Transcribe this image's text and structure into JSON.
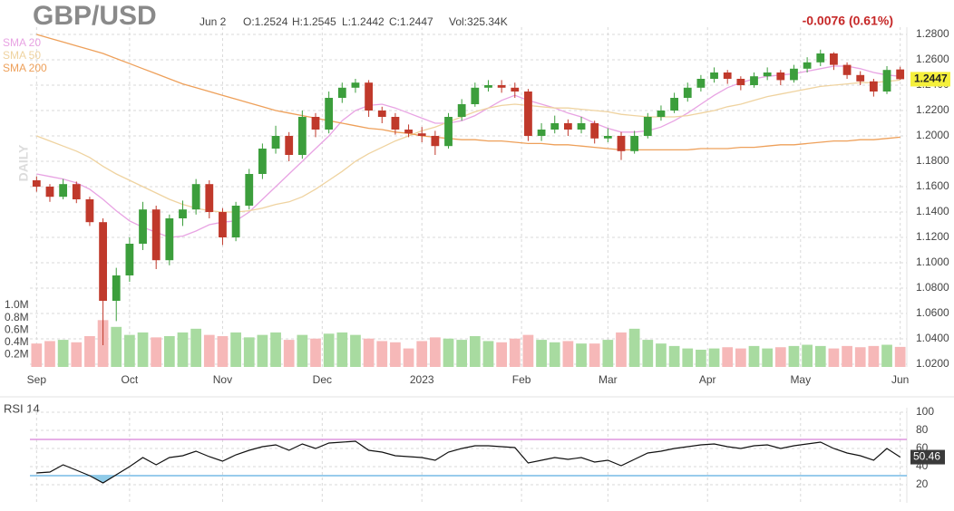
{
  "chart_data": [
    {
      "type": "candlestick",
      "title": "GBP/USD",
      "header_items": [
        "Jun 2",
        "O:1.2524",
        "H:1.2545",
        "L:1.2442",
        "C:1.2447",
        "Vol:325.34K"
      ],
      "change": "-0.0076 (0.61%)",
      "ylabel": "DAILY",
      "x": [
        0,
        1,
        2,
        3,
        4,
        5,
        6,
        7,
        8,
        9,
        10,
        11,
        12,
        13,
        14,
        15,
        16,
        17,
        18,
        19,
        20,
        21,
        22,
        23,
        24,
        25,
        26,
        27,
        28,
        29,
        30,
        31,
        32,
        33,
        34,
        35,
        36,
        37,
        38,
        39,
        40,
        41,
        42,
        43,
        44,
        45,
        46,
        47,
        48,
        49,
        50,
        51,
        52,
        53,
        54,
        55,
        56,
        57,
        58,
        59,
        60,
        61,
        62,
        63,
        64,
        65
      ],
      "xlim": [
        -0.5,
        65.5
      ],
      "xticks": [
        {
          "value": 0,
          "label": "Sep"
        },
        {
          "value": 7,
          "label": "Oct"
        },
        {
          "value": 14,
          "label": "Nov"
        },
        {
          "value": 21.5,
          "label": "Dec"
        },
        {
          "value": 29,
          "label": "2023"
        },
        {
          "value": 36.5,
          "label": "Feb"
        },
        {
          "value": 43,
          "label": "Mar"
        },
        {
          "value": 50.5,
          "label": "Apr"
        },
        {
          "value": 57.5,
          "label": "May"
        },
        {
          "value": 65,
          "label": "Jun"
        }
      ],
      "ylim": [
        1.02,
        1.28
      ],
      "yticks": [
        {
          "value": 1.28,
          "label": "1.2800"
        },
        {
          "value": 1.26,
          "label": "1.2600"
        },
        {
          "value": 1.24,
          "label": "1.2400"
        },
        {
          "value": 1.22,
          "label": "1.2200"
        },
        {
          "value": 1.2,
          "label": "1.2000"
        },
        {
          "value": 1.18,
          "label": "1.1800"
        },
        {
          "value": 1.16,
          "label": "1.1600"
        },
        {
          "value": 1.14,
          "label": "1.1400"
        },
        {
          "value": 1.12,
          "label": "1.1200"
        },
        {
          "value": 1.1,
          "label": "1.1000"
        },
        {
          "value": 1.08,
          "label": "1.0800"
        },
        {
          "value": 1.06,
          "label": "1.0600"
        },
        {
          "value": 1.04,
          "label": "1.0400"
        },
        {
          "value": 1.02,
          "label": "1.0200"
        }
      ],
      "grid": true,
      "up_color": "#3c9e3c",
      "down_color": "#c0392b",
      "open": [
        1.165,
        1.16,
        1.152,
        1.162,
        1.15,
        1.132,
        1.07,
        1.09,
        1.115,
        1.142,
        1.102,
        1.135,
        1.142,
        1.162,
        1.14,
        1.12,
        1.145,
        1.17,
        1.19,
        1.2,
        1.185,
        1.215,
        1.205,
        1.23,
        1.238,
        1.242,
        1.22,
        1.215,
        1.205,
        1.202,
        1.2,
        1.192,
        1.215,
        1.225,
        1.238,
        1.24,
        1.238,
        1.235,
        1.2,
        1.205,
        1.21,
        1.205,
        1.21,
        1.198,
        1.2,
        1.188,
        1.2,
        1.215,
        1.22,
        1.23,
        1.238,
        1.245,
        1.25,
        1.245,
        1.24,
        1.247,
        1.25,
        1.244,
        1.253,
        1.258,
        1.265,
        1.256,
        1.248,
        1.243,
        1.235,
        1.2524
      ],
      "high": [
        1.168,
        1.162,
        1.166,
        1.164,
        1.152,
        1.135,
        1.096,
        1.12,
        1.148,
        1.145,
        1.138,
        1.149,
        1.166,
        1.165,
        1.143,
        1.148,
        1.174,
        1.194,
        1.208,
        1.203,
        1.22,
        1.218,
        1.235,
        1.242,
        1.245,
        1.244,
        1.223,
        1.218,
        1.209,
        1.207,
        1.204,
        1.218,
        1.229,
        1.242,
        1.244,
        1.244,
        1.242,
        1.237,
        1.21,
        1.216,
        1.213,
        1.215,
        1.212,
        1.206,
        1.203,
        1.204,
        1.218,
        1.224,
        1.234,
        1.242,
        1.248,
        1.254,
        1.252,
        1.247,
        1.25,
        1.254,
        1.252,
        1.256,
        1.262,
        1.268,
        1.266,
        1.258,
        1.251,
        1.245,
        1.255,
        1.2545
      ],
      "low": [
        1.156,
        1.148,
        1.15,
        1.147,
        1.129,
        1.035,
        1.054,
        1.085,
        1.11,
        1.095,
        1.098,
        1.129,
        1.138,
        1.135,
        1.114,
        1.117,
        1.142,
        1.166,
        1.186,
        1.18,
        1.182,
        1.199,
        1.202,
        1.226,
        1.234,
        1.215,
        1.21,
        1.201,
        1.199,
        1.195,
        1.185,
        1.19,
        1.212,
        1.223,
        1.235,
        1.234,
        1.23,
        1.196,
        1.196,
        1.202,
        1.2,
        1.202,
        1.194,
        1.195,
        1.181,
        1.186,
        1.198,
        1.212,
        1.218,
        1.227,
        1.235,
        1.242,
        1.241,
        1.236,
        1.238,
        1.244,
        1.24,
        1.242,
        1.25,
        1.255,
        1.252,
        1.245,
        1.24,
        1.231,
        1.233,
        1.2442
      ],
      "close": [
        1.16,
        1.152,
        1.162,
        1.15,
        1.132,
        1.07,
        1.09,
        1.115,
        1.142,
        1.102,
        1.135,
        1.142,
        1.162,
        1.14,
        1.12,
        1.145,
        1.17,
        1.19,
        1.2,
        1.185,
        1.215,
        1.205,
        1.23,
        1.238,
        1.242,
        1.22,
        1.215,
        1.205,
        1.202,
        1.2,
        1.192,
        1.215,
        1.225,
        1.238,
        1.24,
        1.238,
        1.235,
        1.2,
        1.205,
        1.21,
        1.205,
        1.21,
        1.198,
        1.2,
        1.188,
        1.2,
        1.215,
        1.22,
        1.23,
        1.238,
        1.245,
        1.25,
        1.245,
        1.24,
        1.247,
        1.25,
        1.244,
        1.253,
        1.258,
        1.265,
        1.256,
        1.248,
        1.243,
        1.235,
        1.252,
        1.2447
      ],
      "last_color": "#f5f03c",
      "overlays": [
        {
          "name": "SMA 20",
          "color": "#e8a3e3",
          "values": [
            1.17,
            1.168,
            1.166,
            1.163,
            1.158,
            1.15,
            1.141,
            1.133,
            1.128,
            1.124,
            1.12,
            1.121,
            1.125,
            1.13,
            1.132,
            1.133,
            1.14,
            1.15,
            1.16,
            1.17,
            1.18,
            1.19,
            1.2,
            1.212,
            1.22,
            1.224,
            1.225,
            1.222,
            1.218,
            1.214,
            1.21,
            1.21,
            1.212,
            1.216,
            1.222,
            1.228,
            1.232,
            1.228,
            1.225,
            1.222,
            1.218,
            1.215,
            1.21,
            1.206,
            1.203,
            1.203,
            1.204,
            1.207,
            1.212,
            1.218,
            1.225,
            1.232,
            1.238,
            1.242,
            1.245,
            1.247,
            1.248,
            1.249,
            1.251,
            1.253,
            1.255,
            1.255,
            1.253,
            1.25,
            1.248,
            1.247
          ]
        },
        {
          "name": "SMA 50",
          "color": "#efd3a0",
          "values": [
            1.2,
            1.196,
            1.192,
            1.188,
            1.183,
            1.176,
            1.17,
            1.165,
            1.16,
            1.155,
            1.15,
            1.146,
            1.143,
            1.141,
            1.14,
            1.14,
            1.141,
            1.143,
            1.146,
            1.148,
            1.152,
            1.158,
            1.165,
            1.172,
            1.18,
            1.186,
            1.191,
            1.196,
            1.2,
            1.204,
            1.207,
            1.211,
            1.215,
            1.219,
            1.222,
            1.224,
            1.225,
            1.224,
            1.223,
            1.222,
            1.222,
            1.221,
            1.22,
            1.219,
            1.217,
            1.216,
            1.215,
            1.215,
            1.215,
            1.216,
            1.218,
            1.22,
            1.223,
            1.225,
            1.228,
            1.231,
            1.233,
            1.235,
            1.237,
            1.239,
            1.24,
            1.241,
            1.242,
            1.242,
            1.243,
            1.244
          ]
        },
        {
          "name": "SMA 200",
          "color": "#eea05a",
          "values": [
            1.28,
            1.277,
            1.274,
            1.271,
            1.268,
            1.265,
            1.261,
            1.257,
            1.253,
            1.249,
            1.245,
            1.241,
            1.238,
            1.235,
            1.232,
            1.229,
            1.226,
            1.223,
            1.22,
            1.218,
            1.216,
            1.214,
            1.212,
            1.21,
            1.208,
            1.206,
            1.205,
            1.203,
            1.202,
            1.2,
            1.199,
            1.198,
            1.197,
            1.197,
            1.196,
            1.196,
            1.195,
            1.194,
            1.194,
            1.193,
            1.193,
            1.192,
            1.191,
            1.19,
            1.189,
            1.189,
            1.189,
            1.189,
            1.189,
            1.189,
            1.19,
            1.19,
            1.19,
            1.191,
            1.191,
            1.192,
            1.193,
            1.193,
            1.194,
            1.195,
            1.196,
            1.196,
            1.197,
            1.197,
            1.198,
            1.199
          ]
        }
      ],
      "volume": {
        "up_color": "#a8dba0",
        "down_color": "#f6b8b8",
        "ylim": [
          0,
          1000000
        ],
        "yticks": [
          {
            "value": 200000,
            "label": "0.2M"
          },
          {
            "value": 400000,
            "label": "0.4M"
          },
          {
            "value": 600000,
            "label": "0.6M"
          },
          {
            "value": 800000,
            "label": "0.8M"
          },
          {
            "value": 1000000,
            "label": "1.0M"
          }
        ],
        "values": [
          380000,
          420000,
          440000,
          400000,
          500000,
          760000,
          650000,
          520000,
          560000,
          480000,
          500000,
          560000,
          620000,
          520000,
          500000,
          560000,
          480000,
          520000,
          560000,
          440000,
          520000,
          460000,
          540000,
          560000,
          520000,
          460000,
          420000,
          400000,
          300000,
          420000,
          480000,
          460000,
          440000,
          500000,
          420000,
          400000,
          460000,
          520000,
          440000,
          400000,
          420000,
          380000,
          380000,
          440000,
          560000,
          620000,
          440000,
          380000,
          340000,
          300000,
          280000,
          300000,
          320000,
          300000,
          340000,
          300000,
          320000,
          340000,
          360000,
          340000,
          300000,
          340000,
          320000,
          340000,
          360000,
          325340
        ]
      }
    },
    {
      "type": "line",
      "title": "RSI 14",
      "ylim": [
        0,
        100
      ],
      "yticks": [
        20,
        40,
        60,
        80,
        100
      ],
      "levels": [
        {
          "value": 70,
          "color": "#d77fd7"
        },
        {
          "value": 30,
          "color": "#5aaee0"
        }
      ],
      "fill_color": "#8fcbe8",
      "series": [
        {
          "name": "RSI 14",
          "color": "#111111",
          "values": [
            33,
            34,
            42,
            36,
            30,
            22,
            31,
            40,
            50,
            42,
            50,
            52,
            57,
            51,
            46,
            53,
            58,
            62,
            64,
            58,
            65,
            60,
            66,
            67,
            68,
            58,
            56,
            52,
            51,
            50,
            47,
            56,
            60,
            63,
            63,
            62,
            61,
            44,
            47,
            50,
            48,
            50,
            45,
            47,
            41,
            48,
            55,
            57,
            60,
            62,
            64,
            65,
            62,
            60,
            63,
            64,
            60,
            63,
            65,
            67,
            60,
            55,
            52,
            47,
            60,
            50.46
          ]
        }
      ]
    }
  ]
}
